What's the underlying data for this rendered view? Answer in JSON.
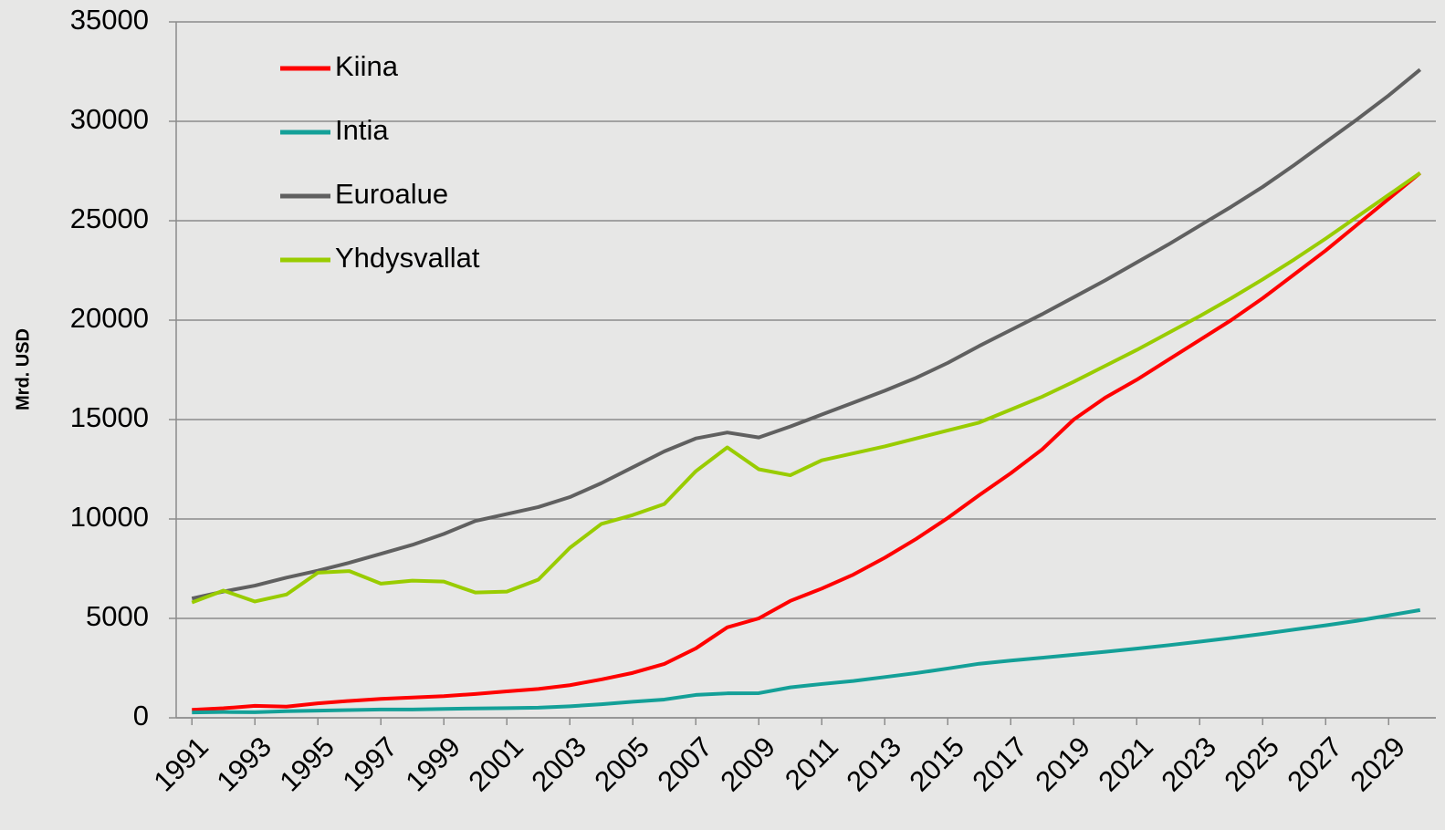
{
  "chart_data": {
    "type": "line",
    "y_label": "Mrd. USD",
    "x": [
      1991,
      1992,
      1993,
      1994,
      1995,
      1996,
      1997,
      1998,
      1999,
      2000,
      2001,
      2002,
      2003,
      2004,
      2005,
      2006,
      2007,
      2008,
      2009,
      2010,
      2011,
      2012,
      2013,
      2014,
      2015,
      2016,
      2017,
      2018,
      2019,
      2020,
      2021,
      2022,
      2023,
      2024,
      2025,
      2026,
      2027,
      2028,
      2029,
      2030
    ],
    "series": [
      {
        "name": "Kiina",
        "color": "#ff0000",
        "values": [
          400,
          480,
          600,
          560,
          730,
          850,
          950,
          1020,
          1090,
          1200,
          1330,
          1450,
          1640,
          1930,
          2260,
          2710,
          3490,
          4550,
          5000,
          5880,
          6500,
          7200,
          8050,
          9000,
          10050,
          11200,
          12300,
          13500,
          15000,
          16100,
          17000,
          18000,
          19000,
          20000,
          21100,
          22300,
          23500,
          24800,
          26100,
          27400
        ]
      },
      {
        "name": "Intia",
        "color": "#14a098",
        "values": [
          270,
          290,
          280,
          330,
          360,
          390,
          420,
          420,
          450,
          470,
          490,
          510,
          580,
          680,
          810,
          920,
          1150,
          1230,
          1240,
          1530,
          1700,
          1850,
          2050,
          2250,
          2480,
          2720,
          2880,
          3020,
          3170,
          3320,
          3480,
          3650,
          3830,
          4020,
          4220,
          4440,
          4650,
          4880,
          5150,
          5420
        ]
      },
      {
        "name": "Euroalue",
        "color": "#606060",
        "values": [
          6000,
          6350,
          6650,
          7050,
          7400,
          7800,
          8250,
          8700,
          9250,
          9900,
          10250,
          10600,
          11100,
          11800,
          12600,
          13400,
          14050,
          14350,
          14100,
          14650,
          15250,
          15850,
          16450,
          17100,
          17850,
          18700,
          19500,
          20300,
          21150,
          22000,
          22900,
          23800,
          24750,
          25700,
          26700,
          27800,
          28950,
          30100,
          31300,
          32600
        ]
      },
      {
        "name": "Yhdysvallat",
        "color": "#99cc00",
        "values": [
          5800,
          6400,
          5850,
          6200,
          7300,
          7380,
          6750,
          6900,
          6850,
          6300,
          6350,
          6950,
          8550,
          9750,
          10200,
          10750,
          12400,
          13600,
          12500,
          12200,
          12950,
          13300,
          13650,
          14050,
          14450,
          14850,
          15500,
          16150,
          16900,
          17700,
          18500,
          19350,
          20200,
          21100,
          22050,
          23050,
          24100,
          25200,
          26300,
          27400
        ]
      }
    ],
    "xlim": [
      1990.5,
      2030.5
    ],
    "xticks": [
      1991,
      1993,
      1995,
      1997,
      1999,
      2001,
      2003,
      2005,
      2007,
      2009,
      2011,
      2013,
      2015,
      2017,
      2019,
      2021,
      2023,
      2025,
      2027,
      2029
    ],
    "ylim": [
      0,
      35000
    ],
    "yticks": [
      0,
      5000,
      10000,
      15000,
      20000,
      25000,
      30000,
      35000
    ],
    "grid": true,
    "legend": "upper left"
  }
}
